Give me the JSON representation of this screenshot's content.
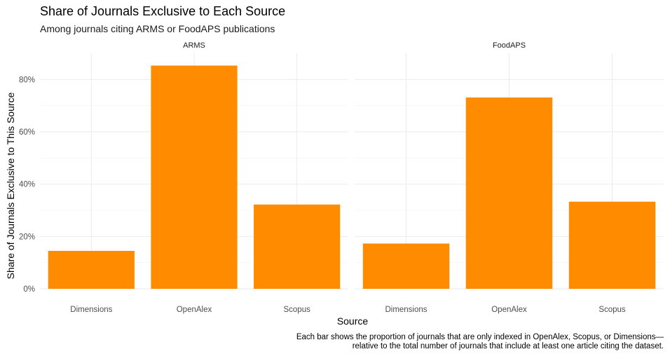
{
  "chart_data": {
    "type": "bar",
    "title": "Share of Journals Exclusive to Each Source",
    "subtitle": "Among journals citing ARMS or FoodAPS publications",
    "xlabel": "Source",
    "ylabel": "Share of Journals Exclusive to This Source",
    "ylim": [
      0,
      0.9
    ],
    "y_ticks": [
      "0%",
      "20%",
      "40%",
      "60%",
      "80%"
    ],
    "y_tick_values": [
      0,
      0.2,
      0.4,
      0.6,
      0.8
    ],
    "categories": [
      "Dimensions",
      "OpenAlex",
      "Scopus"
    ],
    "facets": [
      {
        "label": "ARMS",
        "values": [
          0.145,
          0.853,
          0.322
        ]
      },
      {
        "label": "FoodAPS",
        "values": [
          0.173,
          0.731,
          0.333
        ]
      }
    ],
    "bar_color": "#FF8C00",
    "grid": true,
    "caption": [
      "Each bar shows the proportion of journals that are only indexed in OpenAlex, Scopus, or Dimensions—",
      "relative to the total number of journals that include at least one article citing the dataset."
    ]
  }
}
